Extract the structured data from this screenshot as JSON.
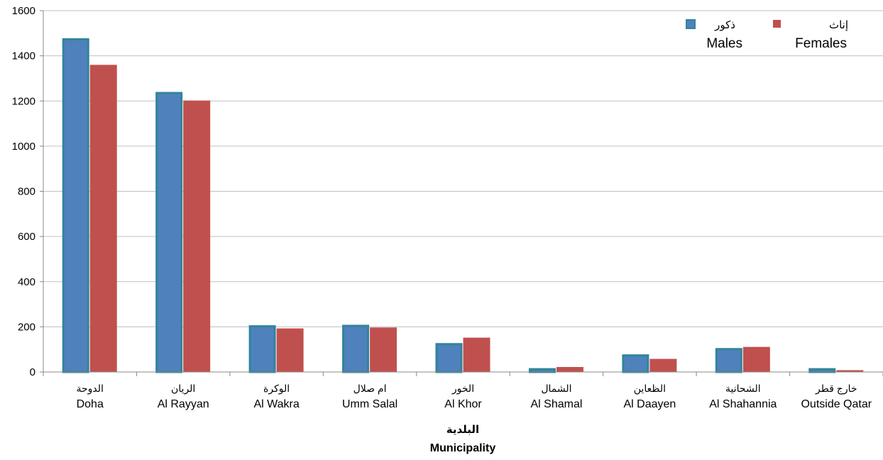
{
  "chart_data": {
    "type": "bar",
    "title": "",
    "xlabel_ar": "البلدية",
    "xlabel": "Municipality",
    "ylabel": "",
    "ylim": [
      0,
      1600
    ],
    "yticks": [
      0,
      200,
      400,
      600,
      800,
      1000,
      1200,
      1400,
      1600
    ],
    "grid": true,
    "legend_position": "top-right",
    "categories": [
      {
        "ar": "الدوحة",
        "en": "Doha"
      },
      {
        "ar": "الريان",
        "en": "Al Rayyan"
      },
      {
        "ar": "الوكرة",
        "en": "Al Wakra"
      },
      {
        "ar": "ام صلال",
        "en": "Umm Salal"
      },
      {
        "ar": "الخور",
        "en": "Al Khor"
      },
      {
        "ar": "الشمال",
        "en": "Al Shamal"
      },
      {
        "ar": "الظعاين",
        "en": "Al Daayen"
      },
      {
        "ar": "الشحانية",
        "en": "Al Shahannia"
      },
      {
        "ar": "خارج قطر",
        "en": "Outside Qatar"
      }
    ],
    "series": [
      {
        "name": "Males",
        "name_ar": "ذكور",
        "color": "#4f81bd",
        "border_color": "#31849b",
        "values": [
          1478,
          1240,
          207,
          209,
          128,
          17,
          78,
          106,
          17
        ]
      },
      {
        "name": "Females",
        "name_ar": "إناث",
        "color": "#c0504d",
        "values": [
          1360,
          1202,
          193,
          197,
          152,
          22,
          58,
          111,
          8
        ]
      }
    ]
  }
}
